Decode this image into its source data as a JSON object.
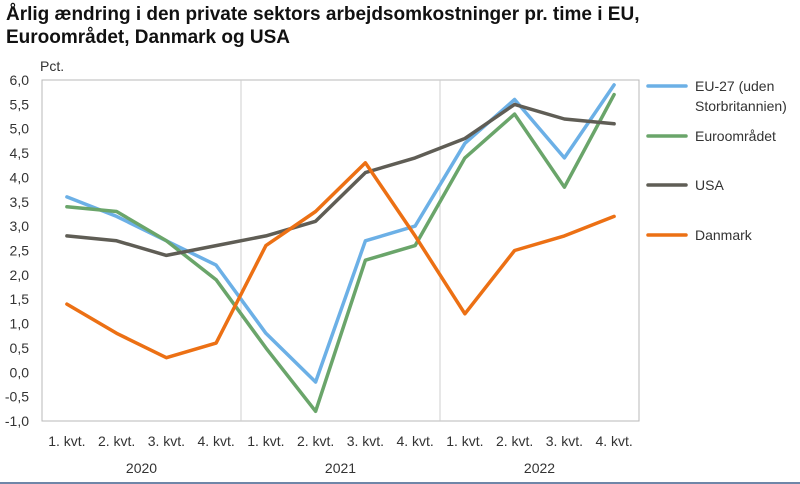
{
  "chart_data": {
    "type": "line",
    "title_lines": [
      "Årlig ændring i den private sektors arbejdsomkostninger pr. time i EU,",
      "Euroområdet, Danmark og USA"
    ],
    "unit_label": "Pct.",
    "ylim": [
      -1.0,
      6.0
    ],
    "y_ticks": [
      "6,0",
      "5,5",
      "5,0",
      "4,5",
      "4,0",
      "3,5",
      "3,0",
      "2,5",
      "2,0",
      "1,5",
      "1,0",
      "0,5",
      "0,0",
      "-0,5",
      "-1,0"
    ],
    "categories": [
      "1. kvt.",
      "2. kvt.",
      "3. kvt.",
      "4. kvt.",
      "1. kvt.",
      "2. kvt.",
      "3. kvt.",
      "4. kvt.",
      "1. kvt.",
      "2. kvt.",
      "3. kvt.",
      "4. kvt."
    ],
    "year_groups": [
      "2020",
      "2021",
      "2022"
    ],
    "grid": "vertical separators between years",
    "legend_position": "right",
    "series": [
      {
        "name": "EU-27 (uden Storbritannien)",
        "name_lines": [
          "EU-27 (uden",
          "Storbritannien)"
        ],
        "color": "#6cb0e6",
        "values": [
          3.6,
          3.2,
          2.7,
          2.2,
          0.8,
          -0.2,
          2.7,
          3.0,
          4.7,
          5.6,
          4.4,
          5.9
        ]
      },
      {
        "name": "Euroområdet",
        "name_lines": [
          "Euroområdet"
        ],
        "color": "#6aa56a",
        "values": [
          3.4,
          3.3,
          2.7,
          1.9,
          0.5,
          -0.8,
          2.3,
          2.6,
          4.4,
          5.3,
          3.8,
          5.7
        ]
      },
      {
        "name": "USA",
        "name_lines": [
          "USA"
        ],
        "color": "#5f5d55",
        "values": [
          2.8,
          2.7,
          2.4,
          2.6,
          2.8,
          3.1,
          4.1,
          4.4,
          4.8,
          5.5,
          5.2,
          5.1
        ]
      },
      {
        "name": "Danmark",
        "name_lines": [
          "Danmark"
        ],
        "color": "#ec7014",
        "values": [
          1.4,
          0.8,
          0.3,
          0.6,
          2.6,
          3.3,
          4.3,
          2.8,
          1.2,
          2.5,
          2.8,
          3.2
        ]
      }
    ]
  }
}
